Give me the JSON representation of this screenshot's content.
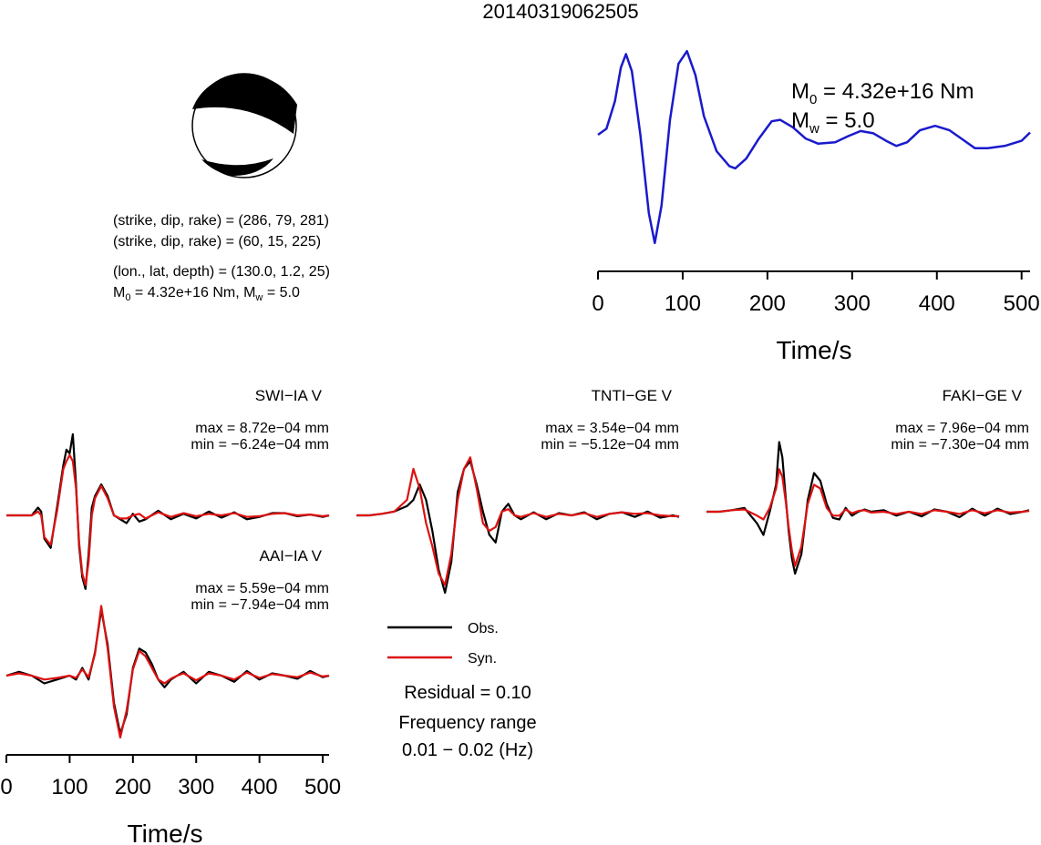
{
  "event_id": "20140319062505",
  "colors": {
    "observed": "#000000",
    "synthetic": "#dd1111",
    "source_time_function": "#1a1acc"
  },
  "beachball": {
    "name": "focal mechanism",
    "line1": "(strike, dip, rake) = (286, 79, 281)",
    "line2": "(strike, dip, rake) = (60, 15, 225)",
    "line3": "(lon., lat, depth) = (130.0, 1.2, 25)",
    "line4_a": "M",
    "line4_sub0": "0",
    "line4_b": " = 4.32e+16 Nm, M",
    "line4_subw": "w",
    "line4_c": " = 5.0"
  },
  "stf_label": {
    "m0_a": "M",
    "m0_sub": "0",
    "m0_b": " = 4.32e+16 Nm",
    "mw_a": "M",
    "mw_sub": "w",
    "mw_b": " = 5.0"
  },
  "legend": {
    "obs": "Obs.",
    "syn": "Syn.",
    "residual": "Residual = 0.10",
    "freq_title": "Frequency range",
    "freq_value": "0.01 − 0.02 (Hz)"
  },
  "chart_data": [
    {
      "type": "line",
      "name": "source time function",
      "xlabel": "Time/s",
      "xlim": [
        0,
        510
      ],
      "xticks": [
        0,
        100,
        200,
        300,
        400,
        500
      ],
      "series": [
        {
          "x": [
            0,
            10,
            20,
            27,
            33,
            40,
            50,
            60,
            67,
            75,
            85,
            95,
            105,
            115,
            125,
            140,
            155,
            162,
            175,
            190,
            205,
            215,
            230,
            245,
            260,
            280,
            295,
            310,
            325,
            340,
            352,
            365,
            380,
            398,
            415,
            430,
            445,
            460,
            480,
            500,
            510
          ],
          "y": [
            0.0,
            0.08,
            0.45,
            0.9,
            1.08,
            0.85,
            0.0,
            -1.05,
            -1.45,
            -0.95,
            0.2,
            0.95,
            1.12,
            0.8,
            0.25,
            -0.22,
            -0.42,
            -0.45,
            -0.32,
            -0.05,
            0.18,
            0.2,
            0.1,
            -0.05,
            -0.12,
            -0.1,
            -0.02,
            0.05,
            0.02,
            -0.08,
            -0.15,
            -0.1,
            0.06,
            0.12,
            0.06,
            -0.06,
            -0.18,
            -0.18,
            -0.15,
            -0.08,
            0.03
          ]
        }
      ]
    },
    {
      "type": "line",
      "name": "SWI-IA V",
      "title": "SWI−IA V",
      "max": "max = 8.72e−04 mm",
      "min": "min = −6.24e−04 mm",
      "xlim": [
        0,
        510
      ],
      "series": [
        {
          "name": "Obs.",
          "x": [
            0,
            20,
            40,
            50,
            55,
            60,
            70,
            80,
            90,
            95,
            100,
            105,
            110,
            115,
            120,
            125,
            130,
            135,
            140,
            150,
            160,
            170,
            180,
            190,
            200,
            210,
            220,
            240,
            260,
            280,
            300,
            320,
            340,
            360,
            380,
            400,
            420,
            440,
            460,
            480,
            500,
            510
          ],
          "y": [
            0.0,
            0.0,
            0.0,
            0.1,
            0.05,
            -0.3,
            -0.42,
            0.1,
            0.65,
            0.85,
            0.8,
            1.05,
            0.4,
            -0.4,
            -0.8,
            -0.95,
            -0.5,
            0.1,
            0.25,
            0.4,
            0.25,
            0.0,
            -0.05,
            -0.1,
            0.02,
            -0.08,
            -0.05,
            0.06,
            -0.05,
            0.02,
            -0.04,
            0.05,
            -0.03,
            0.04,
            -0.05,
            -0.02,
            0.03,
            0.03,
            -0.01,
            0.01,
            -0.02,
            0.0
          ]
        },
        {
          "name": "Syn.",
          "x": [
            0,
            20,
            40,
            50,
            55,
            60,
            70,
            80,
            90,
            95,
            100,
            105,
            110,
            115,
            120,
            125,
            130,
            135,
            140,
            150,
            160,
            170,
            180,
            190,
            200,
            210,
            220,
            240,
            260,
            280,
            300,
            320,
            340,
            360,
            380,
            400,
            420,
            440,
            460,
            480,
            500,
            510
          ],
          "y": [
            0.0,
            0.0,
            0.0,
            0.05,
            0.0,
            -0.28,
            -0.38,
            0.05,
            0.6,
            0.7,
            0.78,
            0.7,
            0.35,
            -0.35,
            -0.75,
            -0.9,
            -0.6,
            0.0,
            0.22,
            0.38,
            0.22,
            0.0,
            -0.04,
            -0.04,
            0.0,
            0.02,
            -0.04,
            0.04,
            -0.02,
            0.03,
            -0.01,
            0.02,
            0.0,
            0.03,
            -0.02,
            -0.01,
            0.02,
            0.03,
            0.0,
            0.01,
            -0.01,
            0.0
          ]
        }
      ]
    },
    {
      "type": "line",
      "name": "TNTI-GE V",
      "title": "TNTI−GE V",
      "max": "max = 3.54e−04 mm",
      "min": "min = −5.12e−04 mm",
      "xlim": [
        0,
        510
      ],
      "series": [
        {
          "name": "Obs.",
          "x": [
            0,
            20,
            40,
            60,
            80,
            90,
            100,
            110,
            120,
            130,
            140,
            150,
            160,
            170,
            180,
            190,
            200,
            210,
            220,
            230,
            240,
            250,
            260,
            280,
            300,
            320,
            340,
            360,
            380,
            400,
            420,
            440,
            460,
            480,
            500,
            510
          ],
          "y": [
            0.0,
            0.0,
            0.02,
            0.05,
            0.12,
            0.2,
            0.4,
            0.2,
            -0.2,
            -0.7,
            -1.0,
            -0.6,
            0.3,
            0.6,
            0.7,
            0.4,
            0.05,
            -0.25,
            -0.35,
            0.05,
            0.15,
            0.0,
            -0.05,
            0.04,
            -0.05,
            0.03,
            0.0,
            0.04,
            -0.05,
            0.02,
            0.04,
            -0.02,
            0.05,
            -0.03,
            0.0,
            -0.02
          ]
        },
        {
          "name": "Syn.",
          "x": [
            0,
            20,
            40,
            60,
            80,
            90,
            100,
            110,
            120,
            130,
            140,
            150,
            160,
            170,
            180,
            190,
            200,
            210,
            220,
            230,
            240,
            250,
            260,
            280,
            300,
            320,
            340,
            360,
            380,
            400,
            420,
            440,
            460,
            480,
            500,
            510
          ],
          "y": [
            0.0,
            0.0,
            0.02,
            0.05,
            0.2,
            0.6,
            0.35,
            -0.1,
            -0.4,
            -0.75,
            -0.9,
            -0.5,
            0.2,
            0.6,
            0.75,
            0.35,
            -0.1,
            -0.2,
            -0.15,
            0.05,
            0.08,
            0.0,
            -0.02,
            0.03,
            -0.02,
            0.02,
            0.0,
            0.03,
            -0.02,
            0.02,
            0.04,
            0.02,
            0.03,
            0.0,
            -0.01,
            -0.01
          ]
        }
      ]
    },
    {
      "type": "line",
      "name": "FAKI-GE V",
      "title": "FAKI−GE V",
      "max": "max = 7.96e−04 mm",
      "min": "min = −7.30e−04 mm",
      "xlim": [
        0,
        510
      ],
      "series": [
        {
          "name": "Obs.",
          "x": [
            0,
            20,
            40,
            60,
            80,
            90,
            100,
            110,
            115,
            120,
            125,
            130,
            135,
            140,
            150,
            160,
            170,
            180,
            190,
            200,
            210,
            220,
            230,
            240,
            250,
            260,
            280,
            300,
            320,
            340,
            360,
            380,
            400,
            420,
            440,
            460,
            480,
            500,
            510
          ],
          "y": [
            0.0,
            0.0,
            0.02,
            0.05,
            -0.15,
            -0.3,
            0.0,
            0.35,
            0.9,
            0.7,
            0.2,
            -0.25,
            -0.6,
            -0.8,
            -0.55,
            0.15,
            0.5,
            0.4,
            0.1,
            -0.08,
            -0.1,
            0.05,
            -0.05,
            0.0,
            0.03,
            0.0,
            0.02,
            -0.05,
            0.0,
            -0.06,
            0.03,
            0.0,
            -0.07,
            0.04,
            -0.05,
            0.04,
            -0.03,
            0.0,
            0.02
          ]
        },
        {
          "name": "Syn.",
          "x": [
            0,
            20,
            40,
            60,
            80,
            90,
            100,
            110,
            115,
            120,
            125,
            130,
            135,
            140,
            150,
            160,
            170,
            180,
            190,
            200,
            210,
            220,
            230,
            240,
            250,
            260,
            280,
            300,
            320,
            340,
            360,
            380,
            400,
            420,
            440,
            460,
            480,
            500,
            510
          ],
          "y": [
            0.0,
            0.0,
            0.02,
            0.03,
            -0.05,
            -0.1,
            0.05,
            0.3,
            0.55,
            0.45,
            0.15,
            -0.2,
            -0.5,
            -0.7,
            -0.45,
            0.1,
            0.35,
            0.3,
            0.05,
            -0.05,
            -0.05,
            0.03,
            -0.02,
            0.01,
            0.02,
            -0.01,
            0.0,
            -0.03,
            0.0,
            -0.03,
            0.02,
            0.0,
            -0.03,
            0.02,
            -0.02,
            0.02,
            -0.01,
            0.0,
            0.01
          ]
        }
      ]
    },
    {
      "type": "line",
      "name": "AAI-IA V",
      "title": "AAI−IA V",
      "max": "max = 5.59e−04 mm",
      "min": "min = −7.94e−04 mm",
      "xlabel": "Time/s",
      "xlim": [
        0,
        510
      ],
      "xticks": [
        0,
        100,
        200,
        300,
        400,
        500
      ],
      "series": [
        {
          "name": "Obs.",
          "x": [
            0,
            20,
            40,
            60,
            80,
            100,
            110,
            120,
            130,
            140,
            150,
            160,
            170,
            180,
            190,
            200,
            210,
            220,
            230,
            240,
            250,
            260,
            270,
            280,
            300,
            320,
            340,
            360,
            380,
            400,
            420,
            440,
            460,
            480,
            500,
            510
          ],
          "y": [
            0.0,
            0.05,
            0.0,
            -0.1,
            -0.05,
            0.0,
            -0.05,
            0.1,
            -0.05,
            0.3,
            0.85,
            0.4,
            -0.35,
            -0.75,
            -0.5,
            0.1,
            0.35,
            0.3,
            0.15,
            -0.05,
            -0.15,
            -0.05,
            0.0,
            0.05,
            -0.1,
            0.05,
            0.0,
            -0.08,
            0.06,
            -0.05,
            0.03,
            0.0,
            -0.04,
            0.06,
            -0.02,
            0.0
          ]
        },
        {
          "name": "Syn.",
          "x": [
            0,
            20,
            40,
            60,
            80,
            100,
            110,
            120,
            130,
            140,
            150,
            160,
            170,
            180,
            190,
            200,
            210,
            220,
            230,
            240,
            250,
            260,
            270,
            280,
            300,
            320,
            340,
            360,
            380,
            400,
            420,
            440,
            460,
            480,
            500,
            510
          ],
          "y": [
            0.0,
            0.03,
            0.0,
            -0.05,
            -0.03,
            0.0,
            -0.03,
            0.08,
            -0.02,
            0.28,
            0.9,
            0.35,
            -0.4,
            -0.8,
            -0.45,
            0.08,
            0.32,
            0.25,
            0.1,
            -0.05,
            -0.1,
            -0.04,
            0.0,
            0.03,
            -0.06,
            0.03,
            0.0,
            -0.05,
            0.04,
            -0.03,
            0.02,
            0.0,
            -0.02,
            0.04,
            -0.01,
            0.0
          ]
        }
      ]
    }
  ]
}
